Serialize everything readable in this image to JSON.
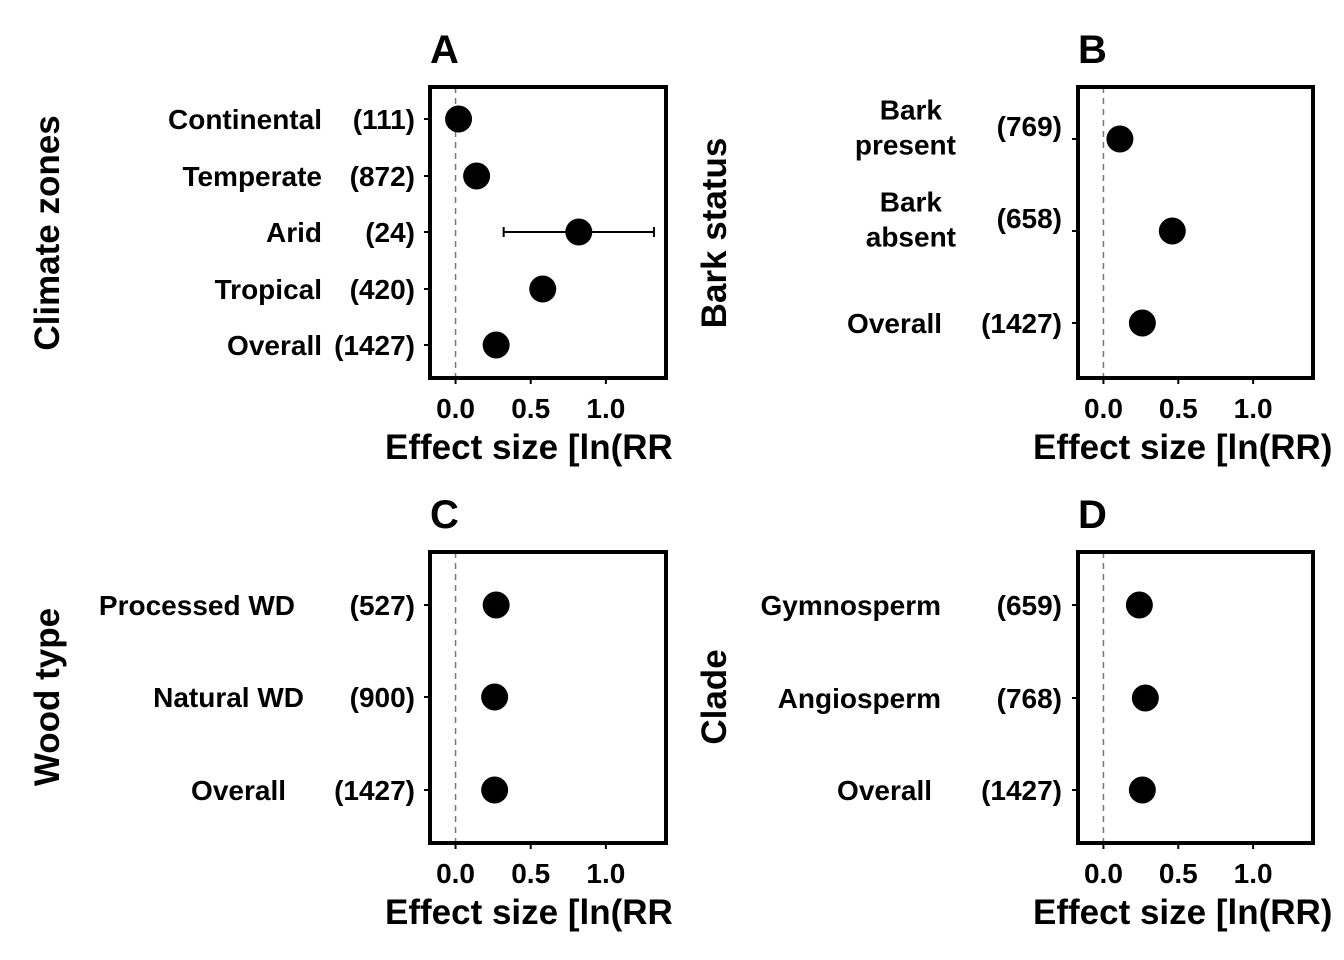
{
  "chart_data": [
    {
      "panel_label": "A",
      "type": "scatter",
      "ylabel": "Climate zones",
      "xlabel": "Effect size [ln(RR",
      "xlim": [
        -0.17,
        1.4
      ],
      "xticks": [
        "0.0",
        "0.5",
        "1.0"
      ],
      "xtick_values": [
        0,
        0.5,
        1.0
      ],
      "reference_line": 0,
      "rows": [
        {
          "label": "Continental",
          "label_lines": [
            "Continental"
          ],
          "n": "(111)",
          "value": 0.02
        },
        {
          "label": "Temperate",
          "label_lines": [
            "Temperate"
          ],
          "n": "(872)",
          "value": 0.14
        },
        {
          "label": "Arid",
          "label_lines": [
            "Arid"
          ],
          "n": "(24)",
          "value": 0.82,
          "ci": [
            0.32,
            1.32
          ]
        },
        {
          "label": "Tropical",
          "label_lines": [
            "Tropical"
          ],
          "n": "(420)",
          "value": 0.58
        },
        {
          "label": "Overall",
          "label_lines": [
            "Overall"
          ],
          "n": "(1427)",
          "value": 0.27
        }
      ]
    },
    {
      "panel_label": "B",
      "type": "scatter",
      "ylabel": "Bark status",
      "xlabel": "Effect size [ln(RR)",
      "xlim": [
        -0.17,
        1.4
      ],
      "xticks": [
        "0.0",
        "0.5",
        "1.0"
      ],
      "xtick_values": [
        0,
        0.5,
        1.0
      ],
      "reference_line": 0,
      "rows": [
        {
          "label": "Bark present",
          "label_lines": [
            "Bark",
            "present"
          ],
          "n": "(769)",
          "value": 0.11
        },
        {
          "label": "Bark absent",
          "label_lines": [
            "Bark",
            "absent"
          ],
          "n": "(658)",
          "value": 0.46
        },
        {
          "label": "Overall",
          "label_lines": [
            "Overall"
          ],
          "n": "(1427)",
          "value": 0.26
        }
      ]
    },
    {
      "panel_label": "C",
      "type": "scatter",
      "ylabel": "Wood type",
      "xlabel": "Effect size [ln(RR",
      "xlim": [
        -0.17,
        1.4
      ],
      "xticks": [
        "0.0",
        "0.5",
        "1.0"
      ],
      "xtick_values": [
        0,
        0.5,
        1.0
      ],
      "reference_line": 0,
      "rows": [
        {
          "label": "Processed WD",
          "label_lines": [
            "Processed WD"
          ],
          "n": "(527)",
          "value": 0.27
        },
        {
          "label": "Natural WD",
          "label_lines": [
            "Natural WD"
          ],
          "n": "(900)",
          "value": 0.26
        },
        {
          "label": "Overall",
          "label_lines": [
            "Overall"
          ],
          "n": "(1427)",
          "value": 0.26
        }
      ]
    },
    {
      "panel_label": "D",
      "type": "scatter",
      "ylabel": "Clade",
      "xlabel": "Effect size [ln(RR)",
      "xlim": [
        -0.17,
        1.4
      ],
      "xticks": [
        "0.0",
        "0.5",
        "1.0"
      ],
      "xtick_values": [
        0,
        0.5,
        1.0
      ],
      "reference_line": 0,
      "rows": [
        {
          "label": "Gymnosperm",
          "label_lines": [
            "Gymnosperm"
          ],
          "n": "(659)",
          "value": 0.24
        },
        {
          "label": "Angiosperm",
          "label_lines": [
            "Angiosperm"
          ],
          "n": "(768)",
          "value": 0.28
        },
        {
          "label": "Overall",
          "label_lines": [
            "Overall"
          ],
          "n": "(1427)",
          "value": 0.26
        }
      ]
    }
  ]
}
